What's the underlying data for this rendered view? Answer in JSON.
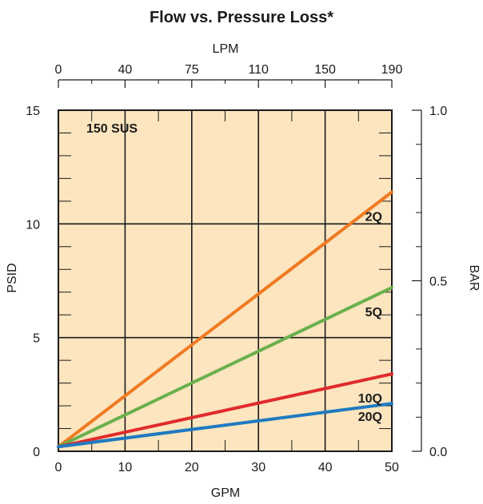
{
  "chart_data": {
    "type": "line",
    "title": "Flow vs. Pressure Loss*",
    "xlabel": "GPM",
    "ylabel": "PSID",
    "top_axis_label": "LPM",
    "right_axis_label": "BAR",
    "annotation": "150 SUS",
    "xlim": [
      0,
      50
    ],
    "ylim": [
      0,
      15
    ],
    "x_ticks": [
      "0",
      "10",
      "20",
      "30",
      "40",
      "50"
    ],
    "y_ticks": [
      "0",
      "5",
      "10",
      "15"
    ],
    "top_ticks": [
      {
        "x": 0,
        "label": "0"
      },
      {
        "x": 10,
        "label": "40"
      },
      {
        "x": 20,
        "label": "75"
      },
      {
        "x": 30,
        "label": "110"
      },
      {
        "x": 40,
        "label": "150"
      },
      {
        "x": 50,
        "label": "190"
      }
    ],
    "right_ticks": [
      {
        "y": 0,
        "label": "0.0"
      },
      {
        "y": 7.5,
        "label": "0.5"
      },
      {
        "y": 15,
        "label": "1.0"
      }
    ],
    "background_color": "#fce5bf",
    "grid": true,
    "series": [
      {
        "name": "2Q",
        "color": "#f07a22",
        "x": [
          0,
          50
        ],
        "y": [
          0.2,
          11.4
        ]
      },
      {
        "name": "5Q",
        "color": "#6ab04c",
        "x": [
          0,
          50
        ],
        "y": [
          0.2,
          7.2
        ]
      },
      {
        "name": "10Q",
        "color": "#e02b2b",
        "x": [
          0,
          50
        ],
        "y": [
          0.2,
          3.4
        ]
      },
      {
        "name": "20Q",
        "color": "#1f7ac0",
        "x": [
          0,
          50
        ],
        "y": [
          0.2,
          2.1
        ]
      }
    ]
  }
}
